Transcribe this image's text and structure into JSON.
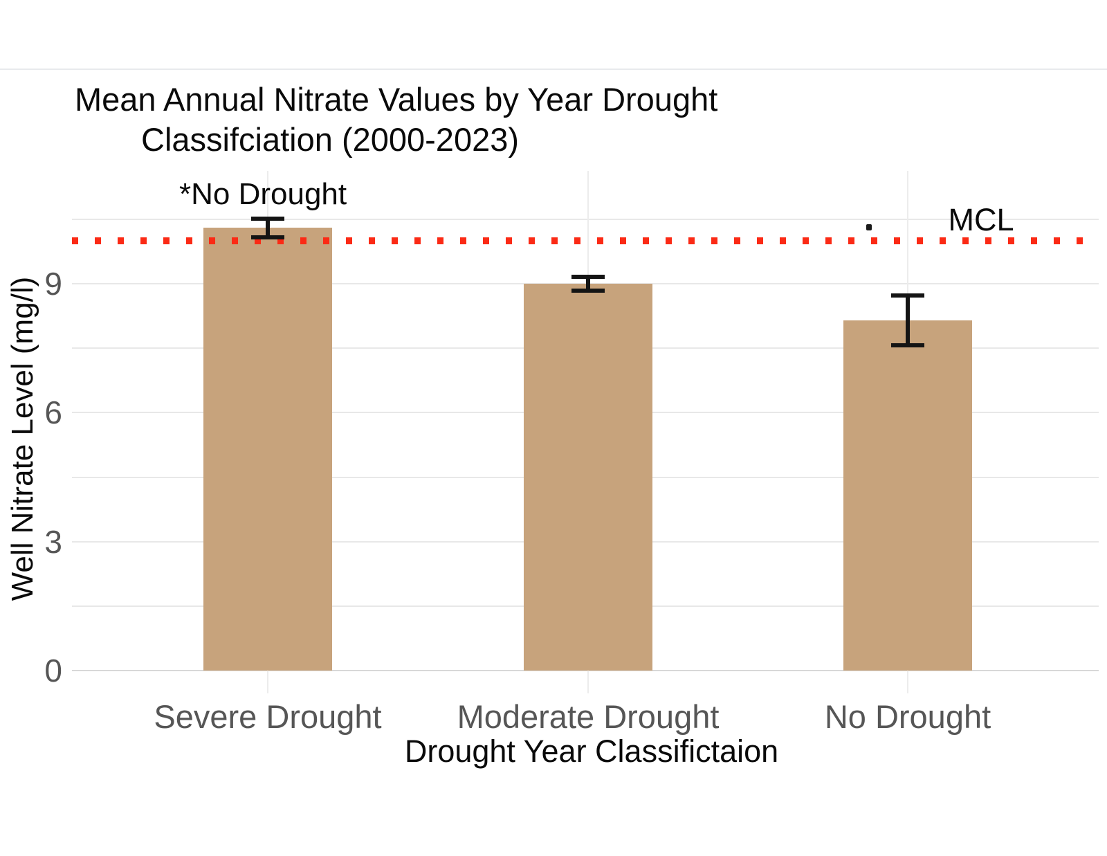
{
  "page": {
    "title_line1": "Mean Annual Nitrate Values by Year Drought",
    "title_line2": "Classifciation (2000-2023)"
  },
  "chart_data": {
    "type": "bar",
    "title": "Mean Annual Nitrate Values by Year Drought Classifciation (2000-2023)",
    "categories": [
      "Severe Drought",
      "Moderate Drought",
      "No Drought"
    ],
    "values": [
      10.3,
      9.0,
      8.15
    ],
    "error_bars": [
      0.22,
      0.16,
      0.58
    ],
    "annotation": "*No Drought",
    "annotation_target": "Severe Drought",
    "xlabel": "Drought Year Classifictaion",
    "ylabel": "Well Nitrate Level (mg/l)",
    "y_ticks": [
      0,
      3,
      6,
      9
    ],
    "ylim": [
      0,
      10.5
    ],
    "grid_step": 1.5,
    "grid": "horizontal major+minor, category ticks",
    "legend_position": "none",
    "bar_color": "#c7a37c",
    "error_bar_color": "#141414",
    "tick_label_color": "#565656",
    "mcl_line": {
      "label": "MCL",
      "value": 10,
      "style": "dotted",
      "color": "#fb2a15"
    }
  }
}
